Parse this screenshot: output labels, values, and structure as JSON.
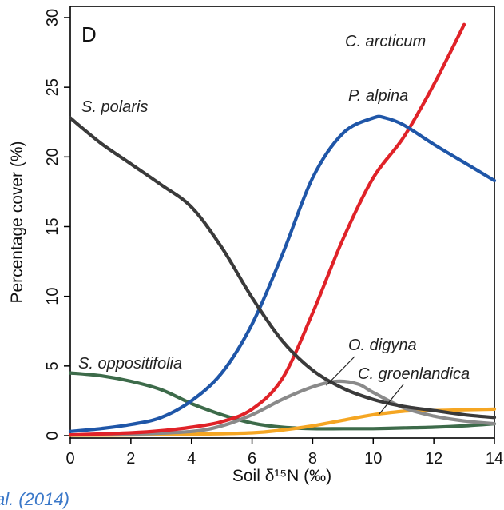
{
  "chart_data": {
    "type": "line",
    "panel_label": "D",
    "xlabel": "Soil δ¹⁵N (‰)",
    "ylabel": "Percentage cover (%)",
    "xlim": [
      0,
      14
    ],
    "ylim": [
      0,
      30
    ],
    "xticks": [
      0,
      2,
      4,
      6,
      8,
      10,
      12,
      14
    ],
    "yticks": [
      0,
      5,
      10,
      15,
      20,
      25,
      30
    ],
    "grid": false,
    "legend": "none (series labelled directly on plot)",
    "series": [
      {
        "name": "S. polaris",
        "color": "#3a3a3a",
        "x": [
          0,
          1,
          2,
          3,
          4,
          5,
          6,
          7,
          8,
          9,
          10,
          11,
          12,
          13,
          14
        ],
        "y": [
          22.8,
          21.0,
          19.5,
          18.0,
          16.4,
          13.5,
          9.9,
          6.8,
          4.7,
          3.4,
          2.6,
          2.1,
          1.8,
          1.5,
          1.3
        ]
      },
      {
        "name": "P. alpina",
        "color": "#1f56a8",
        "x": [
          0,
          1,
          2,
          3,
          4,
          5,
          6,
          7,
          8,
          9,
          10,
          10.4,
          11,
          12,
          13,
          14
        ],
        "y": [
          0.3,
          0.5,
          0.8,
          1.3,
          2.5,
          4.5,
          8.0,
          13.0,
          18.5,
          21.7,
          22.8,
          22.8,
          22.3,
          20.9,
          19.6,
          18.3
        ]
      },
      {
        "name": "C. arcticum",
        "color": "#e02228",
        "x": [
          0,
          2,
          3,
          4,
          5,
          6,
          7,
          8,
          9,
          10,
          11,
          12,
          13
        ],
        "y": [
          0.05,
          0.2,
          0.35,
          0.6,
          1.0,
          1.9,
          4.1,
          8.8,
          14.1,
          18.5,
          21.4,
          25.2,
          29.5
        ]
      },
      {
        "name": "O. digyna",
        "color": "#8a8a8a",
        "x": [
          0,
          2,
          4,
          5,
          6,
          7,
          8,
          8.8,
          9.5,
          10,
          11,
          12,
          13,
          14
        ],
        "y": [
          0.05,
          0.1,
          0.3,
          0.7,
          1.5,
          2.6,
          3.5,
          3.9,
          3.7,
          3.1,
          2.0,
          1.4,
          1.05,
          0.85
        ]
      },
      {
        "name": "C. groenlandica",
        "color": "#f5a623",
        "x": [
          0,
          2,
          4,
          6,
          7,
          8,
          9,
          10,
          11,
          11.5,
          12,
          13,
          14
        ],
        "y": [
          0.02,
          0.05,
          0.1,
          0.2,
          0.4,
          0.7,
          1.1,
          1.5,
          1.75,
          1.8,
          1.8,
          1.85,
          1.9
        ]
      },
      {
        "name": "S. oppositifolia",
        "color": "#3d6b4a",
        "x": [
          0,
          1,
          2,
          3,
          4,
          5,
          6,
          7,
          8,
          9,
          10,
          11,
          12,
          13,
          14
        ],
        "y": [
          4.5,
          4.3,
          3.9,
          3.3,
          2.3,
          1.5,
          0.9,
          0.6,
          0.5,
          0.5,
          0.5,
          0.55,
          0.6,
          0.7,
          0.85
        ]
      }
    ]
  },
  "caption": "al. (2014)"
}
